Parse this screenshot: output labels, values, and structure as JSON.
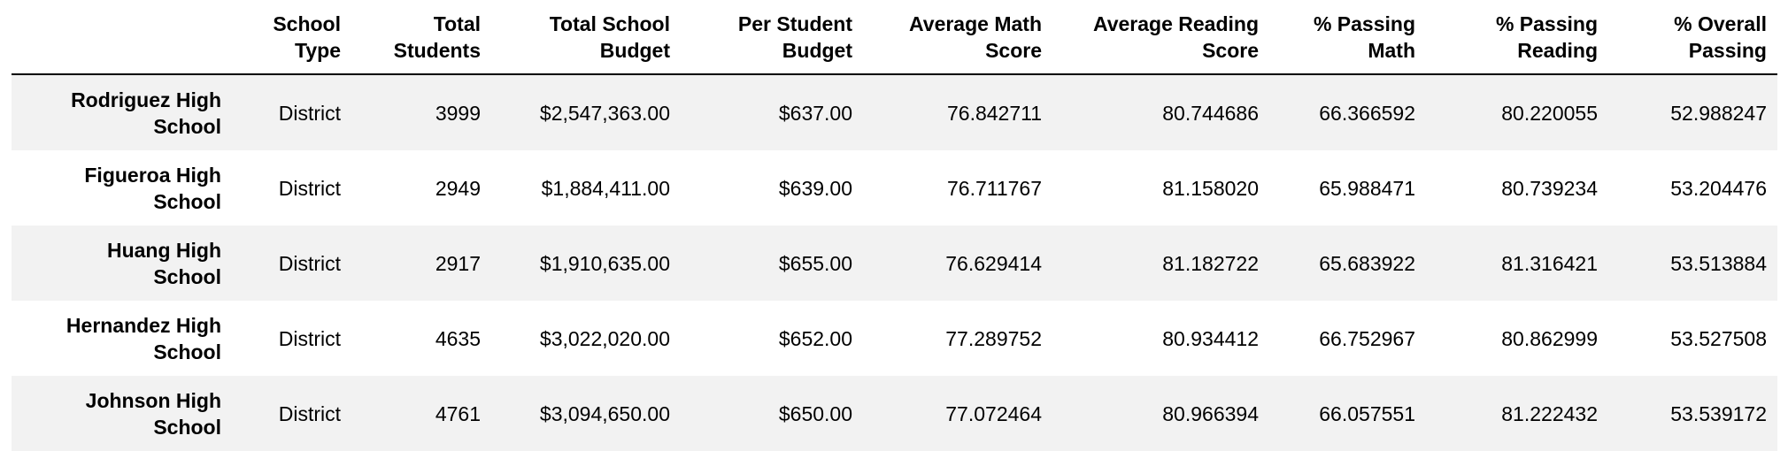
{
  "table": {
    "columns": [
      {
        "line1": "",
        "line2": ""
      },
      {
        "line1": "School",
        "line2": "Type"
      },
      {
        "line1": "Total",
        "line2": "Students"
      },
      {
        "line1": "Total School",
        "line2": "Budget"
      },
      {
        "line1": "Per Student",
        "line2": "Budget"
      },
      {
        "line1": "Average Math",
        "line2": "Score"
      },
      {
        "line1": "Average Reading",
        "line2": "Score"
      },
      {
        "line1": "% Passing",
        "line2": "Math"
      },
      {
        "line1": "% Passing",
        "line2": "Reading"
      },
      {
        "line1": "% Overall",
        "line2": "Passing"
      }
    ],
    "rows": [
      {
        "name_line1": "Rodriguez High",
        "name_line2": "School",
        "type": "District",
        "students": "3999",
        "budget": "$2,547,363.00",
        "per_student": "$637.00",
        "avg_math": "76.842711",
        "avg_reading": "80.744686",
        "pct_math": "66.366592",
        "pct_reading": "80.220055",
        "pct_overall": "52.988247"
      },
      {
        "name_line1": "Figueroa High",
        "name_line2": "School",
        "type": "District",
        "students": "2949",
        "budget": "$1,884,411.00",
        "per_student": "$639.00",
        "avg_math": "76.711767",
        "avg_reading": "81.158020",
        "pct_math": "65.988471",
        "pct_reading": "80.739234",
        "pct_overall": "53.204476"
      },
      {
        "name_line1": "Huang High",
        "name_line2": "School",
        "type": "District",
        "students": "2917",
        "budget": "$1,910,635.00",
        "per_student": "$655.00",
        "avg_math": "76.629414",
        "avg_reading": "81.182722",
        "pct_math": "65.683922",
        "pct_reading": "81.316421",
        "pct_overall": "53.513884"
      },
      {
        "name_line1": "Hernandez High",
        "name_line2": "School",
        "type": "District",
        "students": "4635",
        "budget": "$3,022,020.00",
        "per_student": "$652.00",
        "avg_math": "77.289752",
        "avg_reading": "80.934412",
        "pct_math": "66.752967",
        "pct_reading": "80.862999",
        "pct_overall": "53.527508"
      },
      {
        "name_line1": "Johnson High",
        "name_line2": "School",
        "type": "District",
        "students": "4761",
        "budget": "$3,094,650.00",
        "per_student": "$650.00",
        "avg_math": "77.072464",
        "avg_reading": "80.966394",
        "pct_math": "66.057551",
        "pct_reading": "81.222432",
        "pct_overall": "53.539172"
      }
    ]
  }
}
